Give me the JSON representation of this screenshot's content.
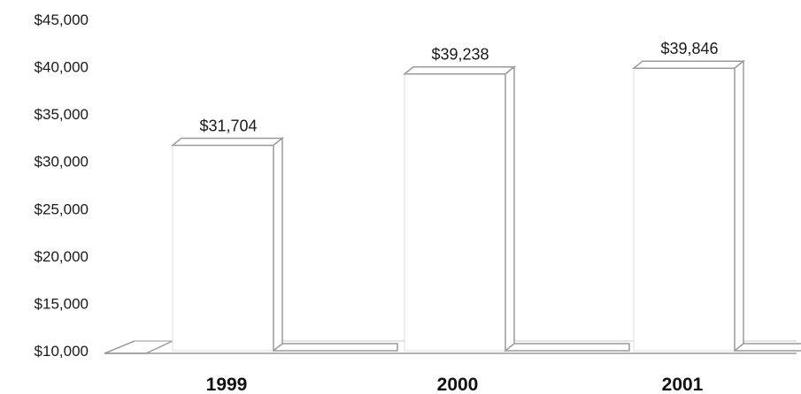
{
  "chart_data": {
    "type": "bar",
    "title": "",
    "xlabel": "",
    "ylabel": "",
    "categories": [
      "1999",
      "2000",
      "2001"
    ],
    "values": [
      31704,
      39238,
      39846
    ],
    "data_labels": [
      "$31,704",
      "$39,238",
      "$39,846"
    ],
    "ylim": [
      10000,
      45000
    ],
    "yticks": [
      10000,
      15000,
      20000,
      25000,
      30000,
      35000,
      40000,
      45000
    ],
    "ytick_labels": [
      "$10,000",
      "$15,000",
      "$20,000",
      "$25,000",
      "$30,000",
      "$35,000",
      "$40,000",
      "$45,000"
    ],
    "grid": false,
    "legend": "none",
    "style": "3d-outline",
    "colors": {
      "outline": "#9a9a9a",
      "fill": "#ffffff",
      "text": "#1a1a1a"
    }
  }
}
